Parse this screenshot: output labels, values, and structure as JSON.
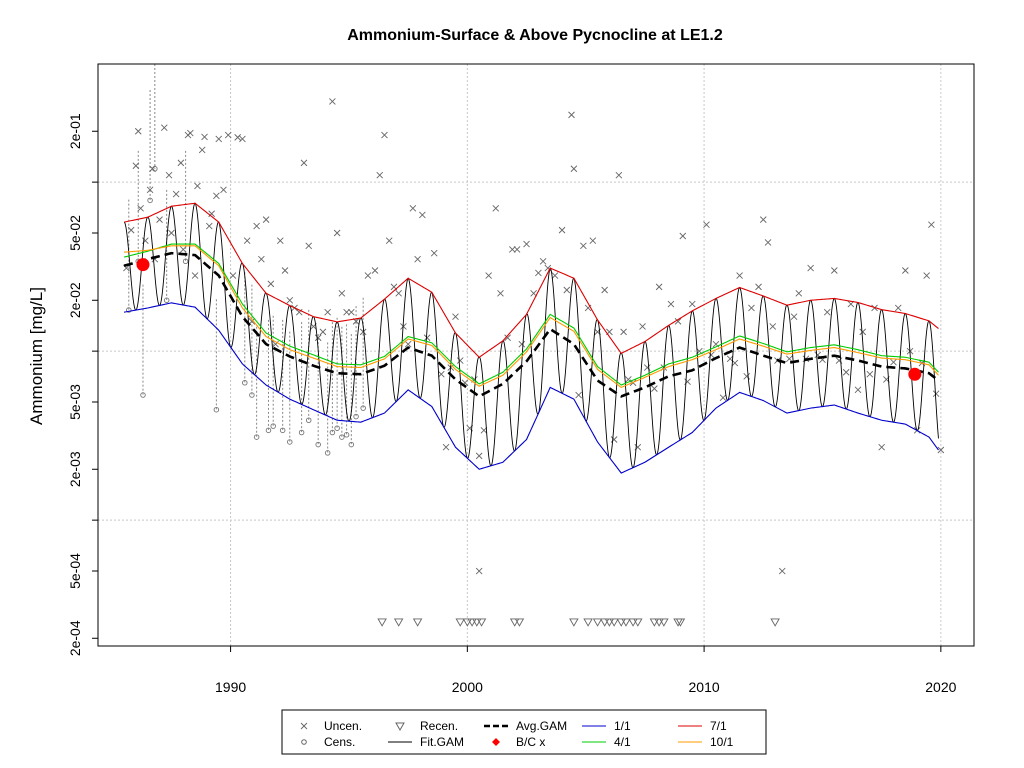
{
  "chart_data": {
    "type": "line",
    "title": "Ammonium-Surface & Above Pycnocline at LE1.2",
    "xlabel": "",
    "ylabel": "Ammonium [mg/L]",
    "y_scale": "log",
    "xlim": [
      1984.4,
      2021.4
    ],
    "ylim": [
      0.00018,
      0.5
    ],
    "x_ticks": [
      1990,
      2000,
      2010,
      2020
    ],
    "x_tick_labels": [
      "1990",
      "2000",
      "2010",
      "2020"
    ],
    "y_ticks": [
      0.0002,
      0.0005,
      0.001,
      0.002,
      0.005,
      0.01,
      0.02,
      0.05,
      0.1,
      0.2
    ],
    "y_tick_labels": [
      "2e-04",
      "5e-04",
      "",
      "2e-03",
      "5e-03",
      "",
      "2e-02",
      "5e-02",
      "",
      "2e-01"
    ],
    "grid": true,
    "legend_position": "bottom",
    "legend": [
      {
        "label": "Uncen.",
        "symbol": "x",
        "color": "#666666"
      },
      {
        "label": "Recen.",
        "symbol": "triangle-down",
        "color": "#666666"
      },
      {
        "label": "Avg.GAM",
        "symbol": "dashed-line",
        "color": "#000000"
      },
      {
        "label": "1/1",
        "symbol": "line",
        "color": "#0000cc"
      },
      {
        "label": "7/1",
        "symbol": "line",
        "color": "#dd0000"
      },
      {
        "label": "Cens.",
        "symbol": "circle",
        "color": "#666666"
      },
      {
        "label": "Fit.GAM",
        "symbol": "line",
        "color": "#000000"
      },
      {
        "label": "B/C x",
        "symbol": "diamond",
        "color": "#ff0000"
      },
      {
        "label": "4/1",
        "symbol": "line",
        "color": "#00cc00"
      },
      {
        "label": "10/1",
        "symbol": "line",
        "color": "#ff9900"
      }
    ],
    "series": [
      {
        "name": "Avg.GAM",
        "color": "#000000",
        "style": "dashed",
        "x": [
          1985.5,
          1986.5,
          1987.5,
          1988.5,
          1989.5,
          1990.5,
          1991.5,
          1992.5,
          1993.5,
          1994.5,
          1995.5,
          1996.5,
          1997.5,
          1998.5,
          1999.5,
          2000.5,
          2001.5,
          2002.5,
          2003.5,
          2004.5,
          2005.5,
          2006.5,
          2007.5,
          2008.5,
          2009.5,
          2010.5,
          2011.5,
          2012.5,
          2013.5,
          2014.5,
          2015.5,
          2016.5,
          2017.5,
          2018.5,
          2019.5,
          2019.9
        ],
        "y": [
          0.032,
          0.035,
          0.038,
          0.037,
          0.028,
          0.016,
          0.011,
          0.0093,
          0.0082,
          0.0074,
          0.0073,
          0.0082,
          0.0105,
          0.0094,
          0.0068,
          0.0054,
          0.0064,
          0.0087,
          0.0135,
          0.011,
          0.0067,
          0.0054,
          0.0061,
          0.0071,
          0.0077,
          0.0091,
          0.0105,
          0.0094,
          0.0085,
          0.009,
          0.0094,
          0.0088,
          0.0081,
          0.0079,
          0.0074,
          0.0067
        ]
      },
      {
        "name": "1/1",
        "color": "#0000cc",
        "style": "solid",
        "x": [
          1985.5,
          1986.5,
          1987.5,
          1988.5,
          1989.5,
          1990.5,
          1991.5,
          1992.5,
          1993.5,
          1994.5,
          1995.5,
          1996.5,
          1997.5,
          1998.5,
          1999.5,
          2000.5,
          2001.5,
          2002.5,
          2003.5,
          2004.5,
          2005.5,
          2006.5,
          2007.5,
          2008.5,
          2009.5,
          2010.5,
          2011.5,
          2012.5,
          2013.5,
          2014.5,
          2015.5,
          2016.5,
          2017.5,
          2018.5,
          2019.5,
          2019.9
        ],
        "y": [
          0.017,
          0.018,
          0.0193,
          0.0182,
          0.0133,
          0.0084,
          0.0063,
          0.0052,
          0.0045,
          0.0039,
          0.0038,
          0.0043,
          0.0059,
          0.0047,
          0.0027,
          0.002,
          0.0022,
          0.003,
          0.0061,
          0.0052,
          0.0029,
          0.0019,
          0.0022,
          0.0027,
          0.0033,
          0.0046,
          0.0057,
          0.0051,
          0.0043,
          0.0046,
          0.0048,
          0.0043,
          0.0039,
          0.0037,
          0.0031,
          0.0026
        ]
      },
      {
        "name": "4/1",
        "color": "#00cc00",
        "style": "solid",
        "x": [
          1985.5,
          1986.5,
          1987.5,
          1988.5,
          1989.5,
          1990.5,
          1991.5,
          1992.5,
          1993.5,
          1994.5,
          1995.5,
          1996.5,
          1997.5,
          1998.5,
          1999.5,
          2000.5,
          2001.5,
          2002.5,
          2003.5,
          2004.5,
          2005.5,
          2006.5,
          2007.5,
          2008.5,
          2009.5,
          2010.5,
          2011.5,
          2012.5,
          2013.5,
          2014.5,
          2015.5,
          2016.5,
          2017.5,
          2018.5,
          2019.5,
          2019.9
        ],
        "y": [
          0.036,
          0.039,
          0.043,
          0.043,
          0.033,
          0.019,
          0.0128,
          0.0107,
          0.0095,
          0.0084,
          0.0083,
          0.0093,
          0.0122,
          0.0112,
          0.0081,
          0.0064,
          0.0075,
          0.0103,
          0.0165,
          0.0137,
          0.0081,
          0.0063,
          0.0072,
          0.0084,
          0.0092,
          0.0106,
          0.0123,
          0.0111,
          0.0099,
          0.0105,
          0.0109,
          0.0102,
          0.0094,
          0.0092,
          0.0086,
          0.0075
        ]
      },
      {
        "name": "7/1",
        "color": "#dd0000",
        "style": "solid",
        "x": [
          1985.5,
          1986.5,
          1987.5,
          1988.5,
          1989.5,
          1990.5,
          1991.5,
          1992.5,
          1993.5,
          1994.5,
          1995.5,
          1996.5,
          1997.5,
          1998.5,
          1999.5,
          2000.5,
          2001.5,
          2002.5,
          2003.5,
          2004.5,
          2005.5,
          2006.5,
          2007.5,
          2008.5,
          2009.5,
          2010.5,
          2011.5,
          2012.5,
          2013.5,
          2014.5,
          2015.5,
          2016.5,
          2017.5,
          2018.5,
          2019.5,
          2019.9
        ],
        "y": [
          0.058,
          0.062,
          0.072,
          0.075,
          0.058,
          0.033,
          0.022,
          0.0186,
          0.016,
          0.0149,
          0.0157,
          0.0203,
          0.027,
          0.0223,
          0.0128,
          0.0092,
          0.0115,
          0.0165,
          0.031,
          0.027,
          0.0153,
          0.0097,
          0.0114,
          0.0142,
          0.0173,
          0.0205,
          0.0238,
          0.0212,
          0.0187,
          0.02,
          0.0205,
          0.0194,
          0.0176,
          0.0167,
          0.0151,
          0.0136
        ]
      },
      {
        "name": "10/1",
        "color": "#ff9900",
        "style": "solid",
        "x": [
          1985.5,
          1986.5,
          1987.5,
          1988.5,
          1989.5,
          1990.5,
          1991.5,
          1992.5,
          1993.5,
          1994.5,
          1995.5,
          1996.5,
          1997.5,
          1998.5,
          1999.5,
          2000.5,
          2001.5,
          2002.5,
          2003.5,
          2004.5,
          2005.5,
          2006.5,
          2007.5,
          2008.5,
          2009.5,
          2010.5,
          2011.5,
          2012.5,
          2013.5,
          2014.5,
          2015.5,
          2016.5,
          2017.5,
          2018.5,
          2019.5,
          2019.9
        ],
        "y": [
          0.0385,
          0.0395,
          0.042,
          0.042,
          0.032,
          0.018,
          0.0122,
          0.0102,
          0.0091,
          0.0081,
          0.008,
          0.009,
          0.0118,
          0.0108,
          0.0078,
          0.0062,
          0.0072,
          0.0099,
          0.0158,
          0.0131,
          0.0078,
          0.0061,
          0.007,
          0.0081,
          0.0089,
          0.0102,
          0.0118,
          0.0107,
          0.0096,
          0.0101,
          0.0105,
          0.0098,
          0.0091,
          0.0089,
          0.0083,
          0.0072
        ]
      }
    ],
    "bc_points": [
      {
        "x": 1986.3,
        "y": 0.0325
      },
      {
        "x": 2018.9,
        "y": 0.0073
      }
    ],
    "uncensored_points": [
      [
        1985.6,
        0.031
      ],
      [
        1985.8,
        0.052
      ],
      [
        1986.0,
        0.125
      ],
      [
        1986.1,
        0.2
      ],
      [
        1986.2,
        0.07
      ],
      [
        1986.4,
        0.045
      ],
      [
        1986.6,
        0.09
      ],
      [
        1986.7,
        0.12
      ],
      [
        1986.8,
        0.035
      ],
      [
        1987.0,
        0.06
      ],
      [
        1987.2,
        0.21
      ],
      [
        1987.4,
        0.11
      ],
      [
        1987.5,
        0.05
      ],
      [
        1987.7,
        0.085
      ],
      [
        1987.9,
        0.13
      ],
      [
        1988.0,
        0.04
      ],
      [
        1988.2,
        0.19
      ],
      [
        1988.3,
        0.195
      ],
      [
        1988.5,
        0.028
      ],
      [
        1988.6,
        0.095
      ],
      [
        1988.8,
        0.155
      ],
      [
        1988.9,
        0.185
      ],
      [
        1989.1,
        0.055
      ],
      [
        1989.2,
        0.065
      ],
      [
        1989.4,
        0.083
      ],
      [
        1989.5,
        0.18
      ],
      [
        1989.7,
        0.09
      ],
      [
        1989.9,
        0.19
      ],
      [
        1990.1,
        0.028
      ],
      [
        1990.3,
        0.184
      ],
      [
        1990.5,
        0.18
      ],
      [
        1990.7,
        0.045
      ],
      [
        1990.9,
        0.015
      ],
      [
        1991.1,
        0.055
      ],
      [
        1991.3,
        0.035
      ],
      [
        1991.5,
        0.06
      ],
      [
        1991.7,
        0.025
      ],
      [
        1991.9,
        0.011
      ],
      [
        1992.1,
        0.045
      ],
      [
        1992.3,
        0.03
      ],
      [
        1992.5,
        0.02
      ],
      [
        1992.7,
        0.018
      ],
      [
        1992.9,
        0.017
      ],
      [
        1993.1,
        0.13
      ],
      [
        1993.3,
        0.042
      ],
      [
        1993.5,
        0.014
      ],
      [
        1993.7,
        0.012
      ],
      [
        1993.9,
        0.013
      ],
      [
        1994.1,
        0.017
      ],
      [
        1994.3,
        0.3
      ],
      [
        1994.5,
        0.05
      ],
      [
        1994.7,
        0.022
      ],
      [
        1994.9,
        0.017
      ],
      [
        1995.1,
        0.017
      ],
      [
        1995.3,
        0.015
      ],
      [
        1995.6,
        0.013
      ],
      [
        1995.8,
        0.028
      ],
      [
        1996.1,
        0.03
      ],
      [
        1996.3,
        0.11
      ],
      [
        1996.5,
        0.19
      ],
      [
        1996.7,
        0.045
      ],
      [
        1996.9,
        0.024
      ],
      [
        1997.1,
        0.022
      ],
      [
        1997.3,
        0.014
      ],
      [
        1997.5,
        0.011
      ],
      [
        1997.7,
        0.07
      ],
      [
        1997.9,
        0.035
      ],
      [
        1998.1,
        0.064
      ],
      [
        1998.3,
        0.012
      ],
      [
        1998.6,
        0.038
      ],
      [
        1998.9,
        0.0073
      ],
      [
        1999.1,
        0.0027
      ],
      [
        1999.3,
        0.008
      ],
      [
        1999.5,
        0.016
      ],
      [
        1999.7,
        0.0088
      ],
      [
        1999.9,
        0.0065
      ],
      [
        2000.1,
        0.0035
      ],
      [
        2000.3,
        0.0068
      ],
      [
        2000.5,
        0.0024
      ],
      [
        2000.5,
        0.0005
      ],
      [
        2000.7,
        0.0034
      ],
      [
        2000.9,
        0.028
      ],
      [
        2001.2,
        0.07
      ],
      [
        2001.4,
        0.022
      ],
      [
        2001.7,
        0.012
      ],
      [
        2001.9,
        0.04
      ],
      [
        2002.1,
        0.04
      ],
      [
        2002.3,
        0.011
      ],
      [
        2002.5,
        0.043
      ],
      [
        2002.8,
        0.022
      ],
      [
        2003.0,
        0.029
      ],
      [
        2003.2,
        0.034
      ],
      [
        2003.4,
        0.031
      ],
      [
        2003.7,
        0.028
      ],
      [
        2004.0,
        0.052
      ],
      [
        2004.2,
        0.023
      ],
      [
        2004.4,
        0.25
      ],
      [
        2004.5,
        0.12
      ],
      [
        2004.7,
        0.0055
      ],
      [
        2004.9,
        0.042
      ],
      [
        2005.1,
        0.018
      ],
      [
        2005.3,
        0.045
      ],
      [
        2005.5,
        0.013
      ],
      [
        2005.8,
        0.023
      ],
      [
        2006.0,
        0.013
      ],
      [
        2006.2,
        0.003
      ],
      [
        2006.4,
        0.11
      ],
      [
        2006.6,
        0.013
      ],
      [
        2006.8,
        0.0068
      ],
      [
        2007.0,
        0.0065
      ],
      [
        2007.2,
        0.0027
      ],
      [
        2007.4,
        0.014
      ],
      [
        2007.6,
        0.008
      ],
      [
        2007.9,
        0.006
      ],
      [
        2008.1,
        0.024
      ],
      [
        2008.3,
        0.008
      ],
      [
        2008.6,
        0.019
      ],
      [
        2008.9,
        0.015
      ],
      [
        2009.1,
        0.048
      ],
      [
        2009.3,
        0.0066
      ],
      [
        2009.5,
        0.019
      ],
      [
        2009.8,
        0.01
      ],
      [
        2010.1,
        0.056
      ],
      [
        2010.3,
        0.0095
      ],
      [
        2010.5,
        0.011
      ],
      [
        2010.8,
        0.0053
      ],
      [
        2011.1,
        0.009
      ],
      [
        2011.3,
        0.0085
      ],
      [
        2011.5,
        0.028
      ],
      [
        2011.8,
        0.0071
      ],
      [
        2012.0,
        0.018
      ],
      [
        2012.3,
        0.024
      ],
      [
        2012.5,
        0.06
      ],
      [
        2012.7,
        0.044
      ],
      [
        2012.9,
        0.014
      ],
      [
        2013.1,
        0.0088
      ],
      [
        2013.3,
        0.0005
      ],
      [
        2013.6,
        0.009
      ],
      [
        2013.8,
        0.016
      ],
      [
        2014.0,
        0.022
      ],
      [
        2014.3,
        0.009
      ],
      [
        2014.5,
        0.031
      ],
      [
        2014.8,
        0.0095
      ],
      [
        2015.0,
        0.0089
      ],
      [
        2015.2,
        0.017
      ],
      [
        2015.5,
        0.03
      ],
      [
        2015.7,
        0.0088
      ],
      [
        2016.0,
        0.0075
      ],
      [
        2016.2,
        0.019
      ],
      [
        2016.5,
        0.0059
      ],
      [
        2016.7,
        0.013
      ],
      [
        2017.0,
        0.0073
      ],
      [
        2017.2,
        0.018
      ],
      [
        2017.5,
        0.0027
      ],
      [
        2017.7,
        0.0068
      ],
      [
        2018.0,
        0.0086
      ],
      [
        2018.2,
        0.018
      ],
      [
        2018.5,
        0.03
      ],
      [
        2018.7,
        0.01
      ],
      [
        2019.0,
        0.0034
      ],
      [
        2019.2,
        0.0085
      ],
      [
        2019.4,
        0.028
      ],
      [
        2019.6,
        0.056
      ],
      [
        2019.8,
        0.0056
      ],
      [
        2020.0,
        0.0026
      ]
    ],
    "censored_points": [
      [
        1985.7,
        0.0175
      ],
      [
        1986.1,
        0.034
      ],
      [
        1986.3,
        0.0055
      ],
      [
        1986.6,
        0.078
      ],
      [
        1986.8,
        0.12
      ],
      [
        1987.3,
        0.02
      ],
      [
        1988.1,
        0.034
      ],
      [
        1989.4,
        0.0045
      ],
      [
        1990.6,
        0.0065
      ],
      [
        1990.9,
        0.0055
      ],
      [
        1991.1,
        0.0031
      ],
      [
        1991.6,
        0.0034
      ],
      [
        1991.8,
        0.0036
      ],
      [
        1992.2,
        0.0034
      ],
      [
        1992.5,
        0.0029
      ],
      [
        1993.0,
        0.0033
      ],
      [
        1993.3,
        0.0039
      ],
      [
        1993.7,
        0.0028
      ],
      [
        1994.1,
        0.0025
      ],
      [
        1994.3,
        0.0033
      ],
      [
        1994.5,
        0.0035
      ],
      [
        1994.7,
        0.0031
      ],
      [
        1994.9,
        0.0032
      ],
      [
        1995.1,
        0.0028
      ],
      [
        1995.3,
        0.0041
      ],
      [
        1995.6,
        0.0046
      ]
    ],
    "recensored_x": [
      1996.4,
      1997.1,
      1997.9,
      1999.7,
      2000.0,
      2000.2,
      2000.4,
      2000.6,
      2002.0,
      2002.2,
      2004.5,
      2005.1,
      2005.5,
      2005.8,
      2006.0,
      2006.2,
      2006.5,
      2006.7,
      2007.0,
      2007.2,
      2007.9,
      2008.1,
      2008.3,
      2008.9,
      2009.0,
      2013.0
    ],
    "recensored_y": 0.00025
  }
}
